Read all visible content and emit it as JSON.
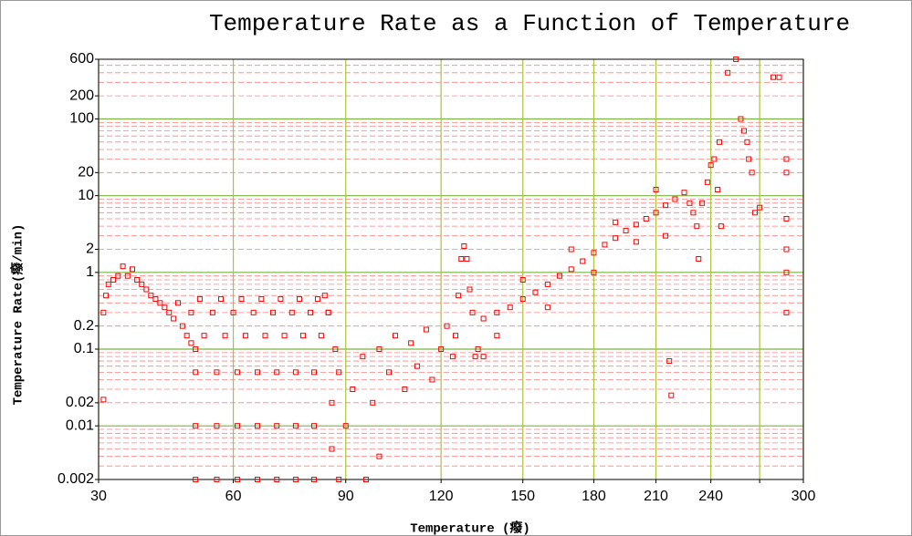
{
  "chart_data": {
    "type": "scatter",
    "title": "Temperature Rate as a Function of Temperature",
    "x_label": "Temperature (癈)",
    "y_label": "Temperature Rate(癈/min)",
    "color": "#ff0000",
    "xscale": "reciprocal-kelvin",
    "yscale": "log",
    "grid": true,
    "minor_grid": true,
    "xlim": [
      30,
      300
    ],
    "ylim": [
      0.002,
      600
    ],
    "xticks": [
      30,
      60,
      90,
      120,
      150,
      180,
      210,
      240,
      {
        "value": 270,
        "label": null
      },
      300
    ],
    "yticks": [
      600,
      200,
      100,
      20,
      10,
      2,
      1,
      0.2,
      0.1,
      0.02,
      0.01,
      0.002
    ],
    "x": [
      31,
      31,
      31.5,
      32,
      33,
      34,
      35,
      36,
      37,
      38,
      39,
      40,
      41,
      42,
      43,
      44,
      45,
      46,
      47,
      48,
      49,
      50,
      51,
      51,
      51,
      51,
      50,
      52,
      53,
      56,
      56,
      56,
      55,
      57,
      58,
      61,
      61,
      61,
      60,
      62,
      63,
      66,
      66,
      66,
      65,
      67,
      68,
      71,
      71,
      71,
      70,
      72,
      73,
      76,
      76,
      76,
      75,
      77,
      78,
      81,
      81,
      81,
      80,
      82,
      83,
      84,
      85,
      85,
      86,
      86,
      87,
      88,
      88,
      90,
      92,
      95,
      96,
      98,
      100,
      100,
      103,
      105,
      108,
      110,
      112,
      115,
      117,
      120,
      122,
      124,
      125,
      126,
      127,
      128,
      129,
      130,
      131,
      132,
      133,
      135,
      140,
      145,
      150,
      155,
      160,
      165,
      170,
      175,
      180,
      185,
      190,
      195,
      200,
      205,
      210,
      215,
      220,
      225,
      228,
      135,
      140,
      150,
      160,
      170,
      180,
      190,
      200,
      210,
      215,
      217,
      218,
      230,
      232,
      233,
      235,
      238,
      240,
      242,
      244,
      245,
      246,
      250,
      255,
      258,
      260,
      262,
      263,
      265,
      267,
      270,
      279,
      283,
      288,
      288,
      288,
      288,
      288,
      288
    ],
    "values": [
      0.022,
      0.3,
      0.5,
      0.7,
      0.8,
      0.9,
      1.2,
      0.9,
      1.1,
      0.8,
      0.7,
      0.6,
      0.5,
      0.45,
      0.4,
      0.35,
      0.3,
      0.25,
      0.4,
      0.2,
      0.15,
      0.12,
      0.1,
      0.002,
      0.01,
      0.05,
      0.3,
      0.45,
      0.15,
      0.002,
      0.01,
      0.05,
      0.3,
      0.45,
      0.15,
      0.002,
      0.01,
      0.05,
      0.3,
      0.45,
      0.15,
      0.002,
      0.01,
      0.05,
      0.3,
      0.45,
      0.15,
      0.002,
      0.01,
      0.05,
      0.3,
      0.45,
      0.15,
      0.002,
      0.01,
      0.05,
      0.3,
      0.45,
      0.15,
      0.002,
      0.01,
      0.05,
      0.3,
      0.45,
      0.15,
      0.5,
      0.3,
      0.3,
      0.005,
      0.02,
      0.1,
      0.05,
      0.002,
      0.01,
      0.03,
      0.08,
      0.002,
      0.02,
      0.1,
      0.004,
      0.05,
      0.15,
      0.03,
      0.12,
      0.06,
      0.18,
      0.04,
      0.1,
      0.2,
      0.08,
      0.15,
      0.5,
      1.5,
      2.2,
      1.5,
      0.6,
      0.3,
      0.08,
      0.1,
      0.25,
      0.3,
      0.35,
      0.45,
      0.55,
      0.7,
      0.9,
      1.1,
      1.4,
      1.8,
      2.3,
      2.8,
      3.5,
      4.2,
      5,
      6,
      7.5,
      9,
      11,
      8,
      0.08,
      0.15,
      0.8,
      0.35,
      2,
      1,
      4.5,
      2.5,
      12,
      3,
      0.07,
      0.025,
      6,
      4,
      1.5,
      8,
      15,
      25,
      30,
      12,
      50,
      4,
      400,
      600,
      100,
      70,
      50,
      30,
      20,
      6,
      7,
      350,
      350,
      30,
      20,
      5,
      2,
      1,
      0.3
    ]
  }
}
